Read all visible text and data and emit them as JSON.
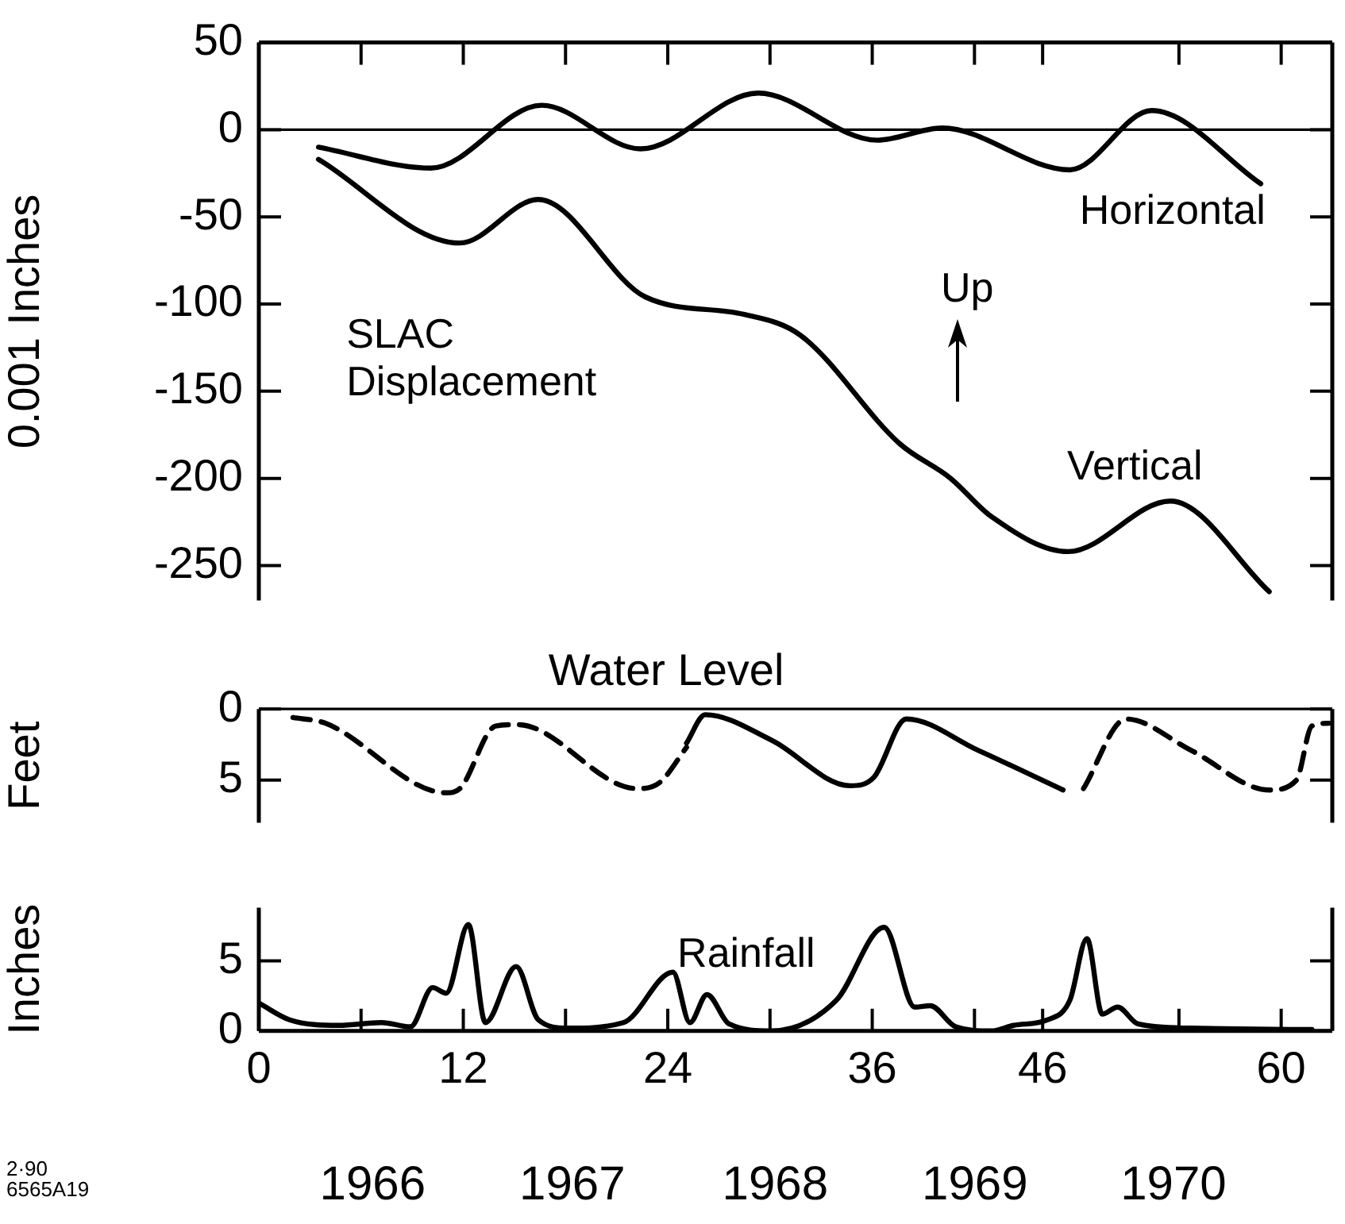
{
  "chart_data": [
    {
      "type": "line",
      "ylabel": "0.001 Inches",
      "xlim": [
        0,
        63
      ],
      "xticks": [
        0,
        {
          "value": 6,
          "label": null
        },
        12,
        {
          "value": 18,
          "label": null
        },
        24,
        {
          "value": 30,
          "label": null
        },
        36,
        {
          "value": 42,
          "label": null
        },
        46,
        {
          "value": 54,
          "label": null
        },
        60
      ],
      "ylim": [
        -270,
        50
      ],
      "yticks": [
        50,
        0,
        -50,
        -100,
        -150,
        -200,
        -250
      ],
      "tick_labels": "y",
      "grid": false,
      "marker": "none",
      "ref_lines": [
        {
          "axis": "y",
          "value": 0,
          "color": "#000000"
        }
      ],
      "annotations": [
        "SLAC Displacement",
        "Up"
      ],
      "series": [
        {
          "name": "Horizontal",
          "color": "#000000",
          "line_style": "solid",
          "x": [
            3.5,
            10.1,
            16.6,
            22.4,
            29.3,
            36.3,
            40.1,
            47.6,
            52.4,
            58.8
          ],
          "values": [
            -10,
            -22,
            14,
            -11,
            21,
            -6,
            1,
            -23,
            11,
            -31
          ]
        },
        {
          "name": "Vertical",
          "color": "#000000",
          "line_style": "solid",
          "x": [
            3.5,
            11.8,
            16.4,
            22.7,
            28.5,
            31.8,
            37.6,
            40.6,
            43,
            47.5,
            53.5,
            59.3
          ],
          "values": [
            -17,
            -65,
            -40,
            -96,
            -106,
            -118,
            -180,
            -200,
            -222,
            -242,
            -213,
            -265
          ]
        }
      ]
    },
    {
      "type": "line",
      "title": "Water Level",
      "ylabel": "Feet",
      "xlim": [
        0,
        63
      ],
      "ylim": [
        8,
        0
      ],
      "yticks": [
        0,
        5
      ],
      "tick_labels": "y",
      "grid": false,
      "marker": "none",
      "ref_lines": [
        {
          "axis": "y",
          "value": 0,
          "color": "#000000"
        }
      ],
      "series": [
        {
          "color": "#000000",
          "line_style": "dashed",
          "x": [
            2.0,
            3.9,
            11.0,
            11.8,
            13.9,
            15.2,
            22.2,
            23.5,
            25.1,
            36,
            48.4,
            50.9,
            54.7,
            59.3,
            60.9,
            61.8,
            62.8
          ],
          "values": [
            0.6,
            1.0,
            5.9,
            5.6,
            1.2,
            1.1,
            5.6,
            5.2,
            2.7,
            null,
            5.6,
            0.7,
            2.9,
            5.7,
            5.0,
            1.2,
            1.0
          ]
        },
        {
          "color": "#000000",
          "line_style": "solid",
          "x": [
            25.1,
            26.2,
            30.1,
            34.7,
            36.1,
            38.0,
            42.2,
            47.2
          ],
          "values": [
            2.4,
            0.4,
            2.2,
            5.4,
            4.8,
            0.7,
            2.9,
            5.7
          ]
        }
      ]
    },
    {
      "type": "line",
      "ylabel": "Inches",
      "xlim": [
        0,
        63
      ],
      "xticks": [
        0,
        {
          "value": 6,
          "label": null
        },
        12,
        {
          "value": 18,
          "label": null
        },
        24,
        {
          "value": 30,
          "label": null
        },
        36,
        {
          "value": 42,
          "label": null
        },
        46,
        {
          "value": 54,
          "label": null
        },
        60
      ],
      "ylim": [
        0,
        8.8
      ],
      "yticks": [
        0,
        5
      ],
      "grid": false,
      "marker": "none",
      "annotations": [
        "Rainfall",
        "1966",
        "1967",
        "1968",
        "1969",
        "1970",
        "2·90 6565A19"
      ],
      "series": [
        {
          "color": "#000000",
          "line_style": "solid",
          "x": [
            0,
            1.8,
            4.7,
            7.2,
            8.9,
            10.2,
            11.0,
            12.3,
            13.3,
            15.1,
            16.4,
            18.1,
            21.4,
            24.3,
            25.3,
            26.3,
            27.6,
            30.1,
            33.9,
            36.7,
            38.5,
            39.4,
            40.9,
            43.0,
            44.3,
            46.3,
            47.6,
            48.6,
            49.5,
            50.4,
            51.6,
            54.7,
            61.8
          ],
          "values": [
            2.0,
            0.8,
            0.4,
            0.6,
            0.3,
            3.1,
            2.7,
            7.6,
            0.6,
            4.6,
            0.8,
            0.2,
            0.6,
            4.2,
            0.6,
            2.6,
            0.5,
            0,
            2.2,
            7.4,
            1.7,
            1.8,
            0.3,
            0,
            0.4,
            0.8,
            2.2,
            6.6,
            1.2,
            1.7,
            0.5,
            0.2,
            0.1
          ]
        }
      ]
    }
  ]
}
